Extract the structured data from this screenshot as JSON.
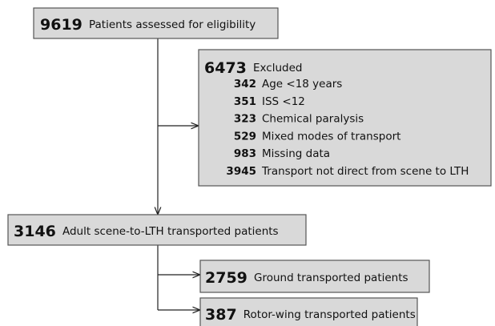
{
  "nodes": [
    {
      "count": "9619",
      "label": "Patients assessed for eligibility"
    },
    {
      "count": "3146",
      "label": "Adult scene-to-LTH transported patients"
    },
    {
      "count": "2759",
      "label": "Ground transported patients"
    },
    {
      "count": "387",
      "label": "Rotor-wing transported patients"
    }
  ],
  "excluded": {
    "count": "6473",
    "label": "Excluded",
    "reasons": [
      {
        "count": "342",
        "label": "Age <18 years"
      },
      {
        "count": "351",
        "label": "ISS <12"
      },
      {
        "count": "323",
        "label": "Chemical paralysis"
      },
      {
        "count": "529",
        "label": "Mixed modes of transport"
      },
      {
        "count": "983",
        "label": "Missing data"
      },
      {
        "count": "3945",
        "label": "Transport not direct from scene to LTH"
      }
    ]
  }
}
